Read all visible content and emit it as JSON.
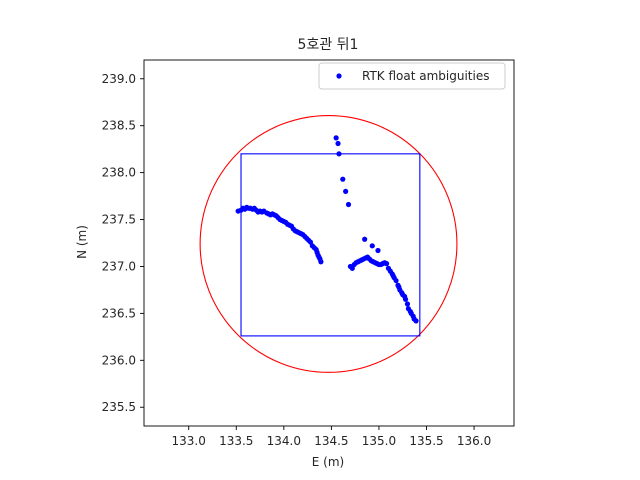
{
  "chart_data": {
    "type": "scatter",
    "title": "5호관 뒤1",
    "xlabel": "E (m)",
    "ylabel": "N (m)",
    "xlim": [
      132.53,
      136.42
    ],
    "ylim": [
      235.3,
      239.2
    ],
    "xticks": [
      133.0,
      133.5,
      134.0,
      134.5,
      135.0,
      135.5,
      136.0
    ],
    "yticks": [
      235.5,
      236.0,
      236.5,
      237.0,
      237.5,
      238.0,
      238.5,
      239.0
    ],
    "xtick_labels": [
      "133.0",
      "133.5",
      "134.0",
      "134.5",
      "135.0",
      "135.5",
      "136.0"
    ],
    "ytick_labels": [
      "235.5",
      "236.0",
      "236.5",
      "237.0",
      "237.5",
      "238.0",
      "238.5",
      "239.0"
    ],
    "grid": false,
    "legend_position": "top-right",
    "series": [
      {
        "name": "RTK float ambiguities",
        "marker": "point",
        "color": "#0000ff",
        "x": [
          133.52,
          133.55,
          133.57,
          133.59,
          133.61,
          133.63,
          133.65,
          133.67,
          133.69,
          133.71,
          133.73,
          133.75,
          133.77,
          133.79,
          133.82,
          133.84,
          133.86,
          133.88,
          133.9,
          133.92,
          133.94,
          133.96,
          133.98,
          134.0,
          134.02,
          134.04,
          134.06,
          134.08,
          134.1,
          134.12,
          134.14,
          134.16,
          134.18,
          134.2,
          134.22,
          134.24,
          134.26,
          134.28,
          134.3,
          134.32,
          134.34,
          134.35,
          134.36,
          134.37,
          134.38,
          134.39,
          134.55,
          134.57,
          134.58,
          134.62,
          134.65,
          134.68,
          134.7,
          134.72,
          134.74,
          134.76,
          134.78,
          134.8,
          134.82,
          134.84,
          134.86,
          134.88,
          134.9,
          134.92,
          134.94,
          134.96,
          134.98,
          135.0,
          135.02,
          135.04,
          135.06,
          135.08,
          135.1,
          135.12,
          135.14,
          135.15,
          135.16,
          135.18,
          135.2,
          135.21,
          135.22,
          135.24,
          135.25,
          135.27,
          135.28,
          135.3,
          135.31,
          135.33,
          135.34,
          135.36,
          135.37,
          135.39,
          134.85,
          134.93,
          134.99
        ],
        "y": [
          237.59,
          237.6,
          237.62,
          237.61,
          237.63,
          237.62,
          237.62,
          237.61,
          237.62,
          237.6,
          237.58,
          237.59,
          237.58,
          237.59,
          237.57,
          237.56,
          237.55,
          237.56,
          237.55,
          237.54,
          237.52,
          237.5,
          237.49,
          237.48,
          237.47,
          237.45,
          237.44,
          237.43,
          237.4,
          237.38,
          237.37,
          237.36,
          237.35,
          237.34,
          237.32,
          237.3,
          237.28,
          237.26,
          237.22,
          237.2,
          237.18,
          237.15,
          237.12,
          237.1,
          237.08,
          237.05,
          238.37,
          238.31,
          238.2,
          237.93,
          237.8,
          237.66,
          237.0,
          236.98,
          237.02,
          237.04,
          237.05,
          237.06,
          237.07,
          237.08,
          237.09,
          237.1,
          237.08,
          237.06,
          237.05,
          237.04,
          237.03,
          237.02,
          237.02,
          237.03,
          237.04,
          237.03,
          236.98,
          236.95,
          236.92,
          236.9,
          236.88,
          236.85,
          236.8,
          236.78,
          236.75,
          236.72,
          236.7,
          236.68,
          236.65,
          236.6,
          236.55,
          236.52,
          236.5,
          236.47,
          236.44,
          236.42,
          237.29,
          237.22,
          237.17
        ]
      }
    ],
    "overlays": [
      {
        "shape": "circle",
        "color": "#ff0000",
        "center": [
          134.47,
          237.24
        ],
        "radius": 1.35
      },
      {
        "shape": "rectangle",
        "color": "#0000ff",
        "x_range": [
          133.55,
          135.43
        ],
        "y_range": [
          236.26,
          238.2
        ]
      }
    ]
  }
}
